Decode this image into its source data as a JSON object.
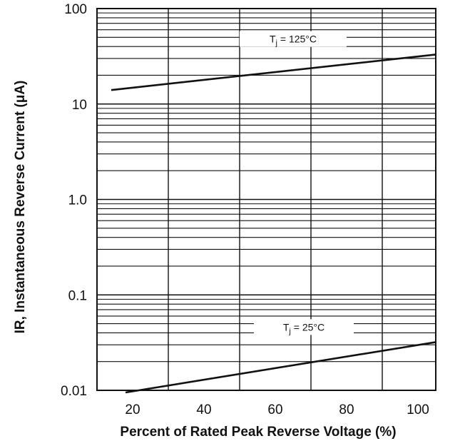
{
  "chart_data": {
    "type": "line",
    "title": "",
    "xlabel": "Percent of Rated Peak Reverse Voltage (%)",
    "ylabel": "IR, Instantaneous Reverse Current (μA)",
    "xlim": [
      10,
      105
    ],
    "ylim": [
      0.01,
      100
    ],
    "yscale": "log",
    "x_ticks": [
      20,
      40,
      60,
      80,
      100
    ],
    "x_tick_labels": [
      "20",
      "40",
      "60",
      "80",
      "100"
    ],
    "y_ticks": [
      0.01,
      0.1,
      1,
      10,
      100
    ],
    "y_tick_labels": [
      "0.01",
      "0.1",
      "1.0",
      "10",
      "100"
    ],
    "grid": true,
    "series": [
      {
        "name": "T_j = 125°C",
        "label_main": "T",
        "label_sub": "j",
        "label_rest": " = 125°C",
        "x": [
          14,
          105
        ],
        "y": [
          14,
          33
        ]
      },
      {
        "name": "T_j = 25°C",
        "label_main": "T",
        "label_sub": "j",
        "label_rest": " = 25°C",
        "x": [
          18,
          105
        ],
        "y": [
          0.0095,
          0.032
        ]
      }
    ]
  }
}
